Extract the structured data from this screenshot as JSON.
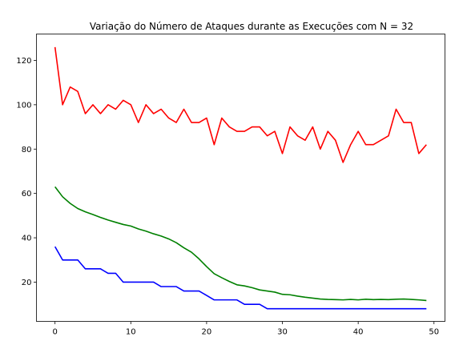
{
  "chart_data": {
    "type": "line",
    "title": "Variação do Número de Ataques durante as Execuções com N = 32",
    "xlabel": "",
    "ylabel": "",
    "xlim": [
      -2.45,
      51.45
    ],
    "ylim": [
      2.3,
      131.9
    ],
    "xticks": [
      0,
      10,
      20,
      30,
      40,
      50
    ],
    "yticks": [
      20,
      40,
      60,
      80,
      100,
      120
    ],
    "grid": false,
    "x": [
      0,
      1,
      2,
      3,
      4,
      5,
      6,
      7,
      8,
      9,
      10,
      11,
      12,
      13,
      14,
      15,
      16,
      17,
      18,
      19,
      20,
      21,
      22,
      23,
      24,
      25,
      26,
      27,
      28,
      29,
      30,
      31,
      32,
      33,
      34,
      35,
      36,
      37,
      38,
      39,
      40,
      41,
      42,
      43,
      44,
      45,
      46,
      47,
      48,
      49
    ],
    "series": [
      {
        "color": "#ff0000",
        "values": [
          126,
          100,
          108,
          106,
          96,
          100,
          96,
          100,
          98,
          102,
          100,
          92,
          100,
          96,
          98,
          94,
          92,
          98,
          92,
          92,
          94,
          82,
          94,
          90,
          88,
          88,
          90,
          90,
          86,
          88,
          78,
          90,
          86,
          84,
          90,
          80,
          88,
          84,
          74,
          82,
          88,
          82,
          82,
          84,
          86,
          98,
          92,
          92,
          78,
          82
        ]
      },
      {
        "color": "#008000",
        "values": [
          63,
          58.5,
          55.5,
          53.2,
          51.7,
          50.5,
          49.2,
          48,
          47,
          46,
          45.3,
          44,
          43,
          41.8,
          40.8,
          39.5,
          37.8,
          35.5,
          33.5,
          30.5,
          27,
          23.8,
          22,
          20.3,
          18.8,
          18.3,
          17.5,
          16.5,
          16,
          15.5,
          14.5,
          14.3,
          13.7,
          13.2,
          12.8,
          12.4,
          12.2,
          12.1,
          12,
          12.2,
          12,
          12.3,
          12.1,
          12.2,
          12.1,
          12.3,
          12.4,
          12.2,
          12,
          11.7
        ]
      },
      {
        "color": "#0000ff",
        "values": [
          36,
          30,
          30,
          30,
          26,
          26,
          26,
          24,
          24,
          20,
          20,
          20,
          20,
          20,
          18,
          18,
          18,
          16,
          16,
          16,
          14,
          12,
          12,
          12,
          12,
          10,
          10,
          10,
          8,
          8,
          8,
          8,
          8,
          8,
          8,
          8,
          8,
          8,
          8,
          8,
          8,
          8,
          8,
          8,
          8,
          8,
          8,
          8,
          8,
          8
        ]
      }
    ]
  }
}
